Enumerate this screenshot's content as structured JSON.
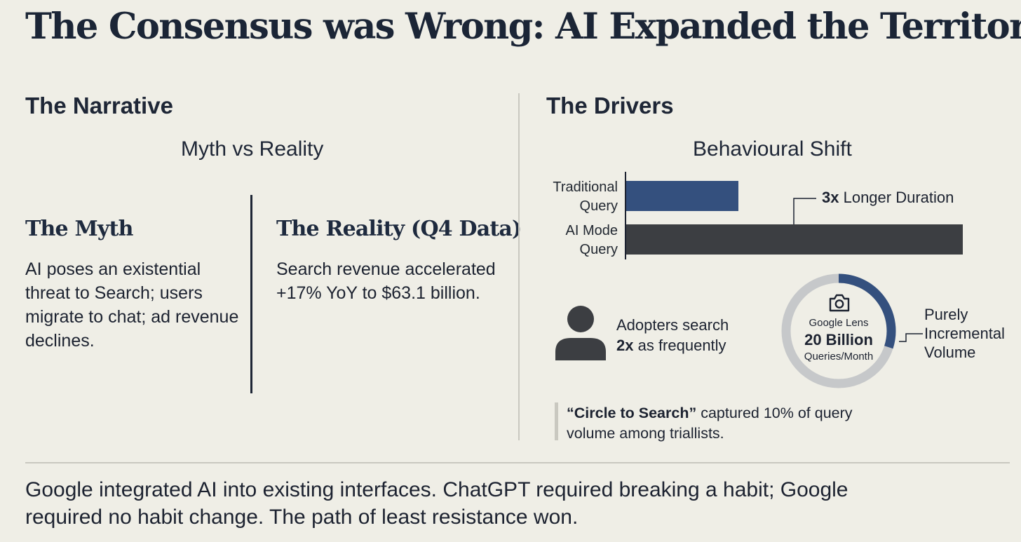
{
  "title": "The Consensus was Wrong: AI Expanded the Territory",
  "narrative": {
    "heading": "The Narrative",
    "subheading": "Myth vs Reality",
    "myth": {
      "heading": "The Myth",
      "text": "AI poses an existential threat to Search; users migrate to chat; ad revenue declines."
    },
    "reality": {
      "heading": "The Reality (Q4 Data)",
      "text": "Search revenue accelerated +17% YoY to $63.1 billion."
    }
  },
  "drivers": {
    "heading": "The Drivers",
    "subheading": "Behavioural Shift",
    "bars": {
      "traditional_line1": "Traditional",
      "traditional_line2": "Query",
      "ai_line1": "AI Mode",
      "ai_line2": "Query",
      "callout_bold": "3x",
      "callout_rest": " Longer Duration"
    },
    "adopters": {
      "line1": "Adopters search",
      "line2_bold": "2x",
      "line2_rest": " as frequently"
    },
    "lens": {
      "name": "Google Lens",
      "value": "20 Billion",
      "unit": "Queries/Month",
      "side_label_line1": "Purely",
      "side_label_line2": "Incremental",
      "side_label_line3": "Volume"
    },
    "circle_to_search": {
      "bold": "“Circle to Search”",
      "rest_line1": " captured 10% of query",
      "line2": "volume among triallists."
    }
  },
  "footer": {
    "line1": "Google integrated AI into existing interfaces. ChatGPT required breaking a habit; Google",
    "line2": "required no habit change. The path of least resistance won."
  },
  "chart_data": {
    "type": "bar",
    "orientation": "horizontal",
    "categories": [
      "Traditional Query",
      "AI Mode Query"
    ],
    "values": [
      1,
      3
    ],
    "annotation": "3x Longer Duration",
    "colors": [
      "#34507e",
      "#3c3e42"
    ]
  }
}
